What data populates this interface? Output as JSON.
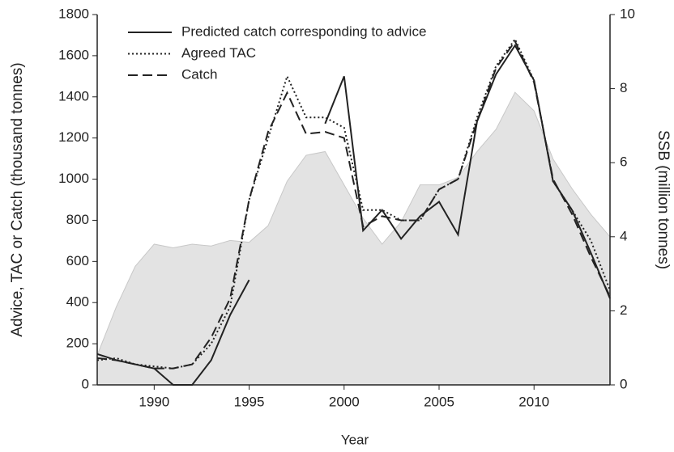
{
  "chart_data": {
    "type": "line",
    "xlabel": "Year",
    "ylabel": "Advice, TAC or Catch (thousand tonnes)",
    "y2label": "SSB (million tonnes)",
    "x": [
      1987,
      1988,
      1989,
      1990,
      1991,
      1992,
      1993,
      1994,
      1995,
      1996,
      1997,
      1998,
      1999,
      2000,
      2001,
      2002,
      2003,
      2004,
      2005,
      2006,
      2007,
      2008,
      2009,
      2010,
      2011,
      2012,
      2013,
      2014
    ],
    "series": [
      {
        "type": "area",
        "axis": "y2",
        "color": "#e3e3e3",
        "values": [
          0.8,
          2.1,
          3.2,
          3.8,
          3.7,
          3.8,
          3.75,
          3.9,
          3.85,
          4.3,
          5.5,
          6.2,
          6.3,
          5.4,
          4.5,
          3.8,
          4.4,
          5.4,
          5.4,
          5.6,
          6.3,
          6.9,
          7.9,
          7.4,
          6.1,
          5.3,
          4.6,
          4.0
        ]
      },
      {
        "name": "Predicted catch corresponding to advice",
        "color": "#222222",
        "dash": "solid",
        "values": [
          150,
          120,
          100,
          80,
          0,
          0,
          120,
          340,
          510,
          null,
          null,
          null,
          1270,
          1500,
          750,
          850,
          710,
          820,
          890,
          730,
          1280,
          1510,
          1650,
          1480,
          990,
          850,
          640,
          420
        ]
      },
      {
        "name": "Agreed TAC",
        "color": "#222222",
        "dash": "dotted",
        "values": [
          120,
          130,
          100,
          90,
          80,
          100,
          200,
          380,
          900,
          1200,
          1500,
          1300,
          1300,
          1250,
          850,
          850,
          800,
          800,
          950,
          1000,
          1300,
          1550,
          1680,
          1480,
          990,
          850,
          700,
          460
        ]
      },
      {
        "name": "Catch",
        "color": "#222222",
        "dash": "dashed",
        "values": [
          130,
          120,
          100,
          80,
          80,
          100,
          230,
          420,
          900,
          1230,
          1420,
          1220,
          1230,
          1200,
          770,
          820,
          800,
          800,
          950,
          1000,
          1280,
          1540,
          1670,
          1470,
          1000,
          830,
          620,
          430
        ]
      }
    ],
    "xlim": [
      1987,
      2014
    ],
    "xticks": [
      1990,
      1995,
      2000,
      2005,
      2010
    ],
    "ylim": [
      0,
      1800
    ],
    "yticks": [
      0,
      200,
      400,
      600,
      800,
      1000,
      1200,
      1400,
      1600,
      1800
    ],
    "y2lim": [
      0,
      10
    ],
    "y2ticks": [
      0,
      2,
      4,
      6,
      8,
      10
    ],
    "legend": "upper-left",
    "grid": false
  }
}
